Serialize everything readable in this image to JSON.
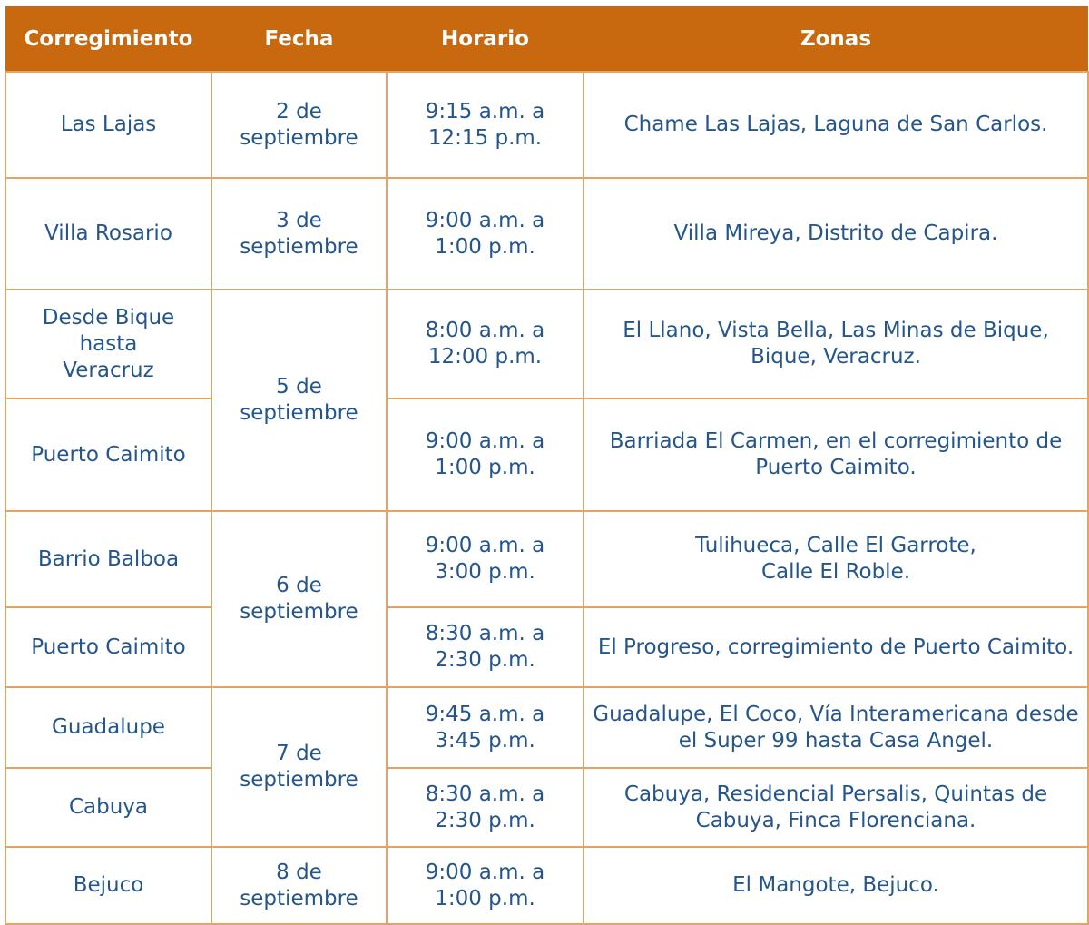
{
  "headers": [
    "Corregimiento",
    "Fecha",
    "Horario",
    "Zonas"
  ],
  "colors": {
    "header_bg": "#C8690F",
    "text": "#24568C",
    "border": "#E3A465"
  },
  "rows": [
    {
      "corregimiento": "Las Lajas",
      "fecha": "2 de septiembre",
      "horario": "9:15 a.m. a 12:15 p.m.",
      "zonas": "Chame Las Lajas, Laguna de San Carlos."
    },
    {
      "corregimiento": "Villa Rosario",
      "fecha": "3 de septiembre",
      "horario": "9:00 a.m. a 1:00 p.m.",
      "zonas": "Villa Mireya, Distrito de Capira."
    },
    {
      "corregimiento": "Desde Bique hasta Veracruz",
      "fecha": "5 de septiembre",
      "horario": "8:00 a.m. a 12:00 p.m.",
      "zonas": "El Llano, Vista Bella, Las Minas de Bique, Bique, Veracruz."
    },
    {
      "corregimiento": "Puerto Caimito",
      "horario": "9:00 a.m. a 1:00 p.m.",
      "zonas": "Barriada El Carmen, en el corregimiento de Puerto Caimito."
    },
    {
      "corregimiento": "Barrio Balboa",
      "fecha": "6 de septiembre",
      "horario": "9:00 a.m. a 3:00 p.m.",
      "zonas": "Tulihueca, Calle El Garrote, Calle El Roble."
    },
    {
      "corregimiento": "Puerto Caimito",
      "horario": "8:30 a.m. a 2:30 p.m.",
      "zonas": "El Progreso, corregimiento de Puerto Caimito."
    },
    {
      "corregimiento": "Guadalupe",
      "fecha": "7 de septiembre",
      "horario": "9:45 a.m. a 3:45 p.m.",
      "zonas": "Guadalupe, El Coco, Vía Interamericana desde el Super 99 hasta Casa Angel."
    },
    {
      "corregimiento": "Cabuya",
      "horario": "8:30 a.m. a 2:30 p.m.",
      "zonas": "Cabuya, Residencial Persalis, Quintas de Cabuya, Finca Florenciana."
    },
    {
      "corregimiento": "Bejuco",
      "fecha": "8 de septiembre",
      "horario": "9:00 a.m. a 1:00 p.m.",
      "zonas": "El Mangote, Bejuco."
    }
  ]
}
